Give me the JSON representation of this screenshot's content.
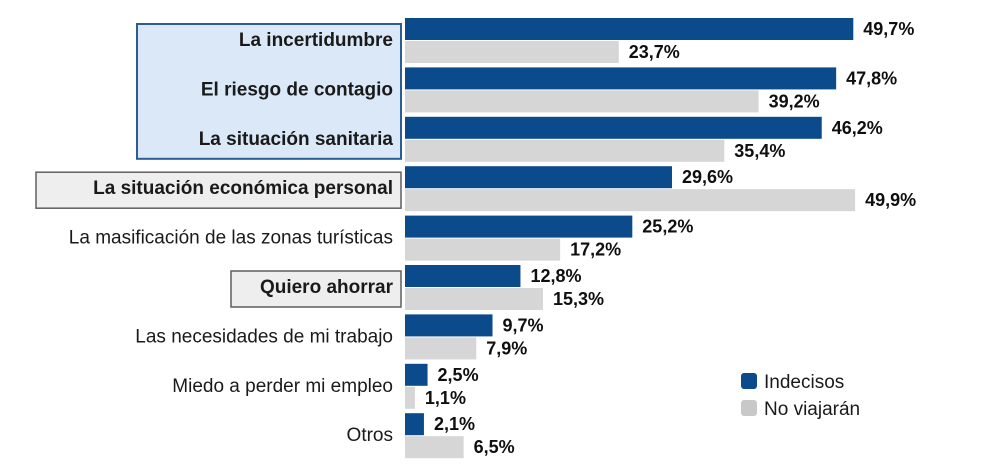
{
  "chart_data": {
    "type": "bar",
    "orientation": "horizontal",
    "categories": [
      "La incertidumbre",
      "El riesgo de contagio",
      "La situación sanitaria",
      "La situación económica personal",
      "La masificación de las zonas turísticas",
      "Quiero ahorrar",
      "Las necesidades de mi trabajo",
      "Miedo a perder mi empleo",
      "Otros"
    ],
    "series": [
      {
        "name": "Indecisos",
        "color": "#0b4a8b",
        "values": [
          49.7,
          47.8,
          46.2,
          29.6,
          25.2,
          12.8,
          9.7,
          2.5,
          2.1
        ],
        "labels": [
          "49,7%",
          "47,8%",
          "46,2%",
          "29,6%",
          "25,2%",
          "12,8%",
          "9,7%",
          "2,5%",
          "2,1%"
        ]
      },
      {
        "name": "No viajarán",
        "color": "#d6d6d6",
        "values": [
          23.7,
          39.2,
          35.4,
          49.9,
          17.2,
          15.3,
          7.9,
          1.1,
          6.5
        ],
        "labels": [
          "23,7%",
          "39,2%",
          "35,4%",
          "49,9%",
          "17,2%",
          "15,3%",
          "7,9%",
          "1,1%",
          "6,5%"
        ]
      }
    ],
    "xlim": [
      0,
      50
    ],
    "legend": {
      "position": "bottom-right",
      "entries": [
        "Indecisos",
        "No viajarán"
      ]
    },
    "highlight_groups": [
      {
        "style": "blue",
        "categories": [
          0,
          1,
          2
        ]
      },
      {
        "style": "gray",
        "categories": [
          3
        ]
      },
      {
        "style": "gray",
        "categories": [
          5
        ]
      }
    ],
    "bold_categories": [
      0,
      1,
      2,
      3,
      5
    ],
    "colors": {
      "highlight_blue_fill": "#dbe8f8",
      "highlight_blue_border": "#2b5d94",
      "highlight_gray_fill": "#eeeeee",
      "highlight_gray_border": "#5f5f5f"
    }
  }
}
